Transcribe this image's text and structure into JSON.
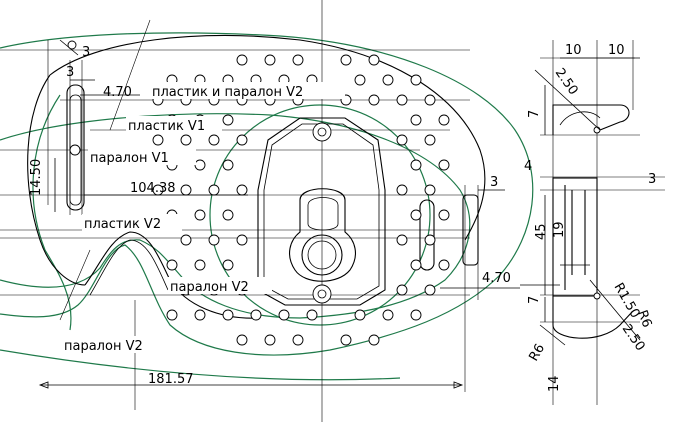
{
  "labels": {
    "plastic_and_foam_v2": "пластик и паралон V2",
    "plastic_v1": "пластик V1",
    "foam_v1": "паралон V1",
    "plastic_v2": "пластик V2",
    "foam_v2_mid": "паралон V2",
    "foam_v2_low": "паралон V2"
  },
  "dimensions": {
    "d3_top": "3",
    "d3_left": "3",
    "d4_70_top": "4.70",
    "d14_50": "14.50",
    "d104_38": "104.38",
    "d3_right": "3",
    "d4_70_right": "4.70",
    "d181_57": "181.57",
    "side_10_left": "10",
    "side_10_right": "10",
    "side_phi2_50_top": "2.50",
    "side_7_top": "7",
    "side_4": "4",
    "side_3": "3",
    "side_45": "45",
    "side_19": "19",
    "side_7_bottom": "7",
    "side_r1_50": "R1.50",
    "side_r6_right": "R6",
    "side_phi2_50_bottom": "2.50",
    "side_r6_left": "R6",
    "side_14": "14"
  },
  "colors": {
    "outline": "#1f7a4a",
    "lines": "#000000",
    "background": "#ffffff"
  }
}
